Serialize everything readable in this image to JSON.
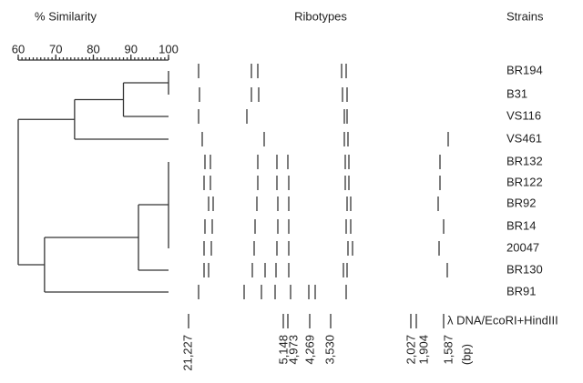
{
  "chart_data": {
    "type": "dendrogram",
    "xlabel": "% Similarity",
    "lanes_label": "Ribotypes",
    "leaves_label": "Strains",
    "xlim": [
      60,
      100
    ],
    "xticks": [
      60,
      70,
      80,
      90,
      100
    ],
    "leaves": [
      "BR194",
      "B31",
      "VS116",
      "VS461",
      "BR132",
      "BR122",
      "BR92",
      "BR14",
      "20047",
      "BR130",
      "BR91"
    ],
    "merges": [
      {
        "leaves": [
          0,
          1
        ],
        "similarity": 100
      },
      {
        "leaves": [
          0,
          1,
          2
        ],
        "similarity": 88
      },
      {
        "leaves": [
          0,
          1,
          2,
          3
        ],
        "similarity": 75
      },
      {
        "leaves": [
          4,
          5,
          6,
          7,
          8
        ],
        "similarity": 100
      },
      {
        "leaves": [
          4,
          5,
          6,
          7,
          8,
          9
        ],
        "similarity": 92
      },
      {
        "leaves": [
          4,
          5,
          6,
          7,
          8,
          9,
          10
        ],
        "similarity": 67
      },
      {
        "leaves": [
          0,
          1,
          2,
          3,
          4,
          5,
          6,
          7,
          8,
          9,
          10
        ],
        "similarity": 60
      }
    ],
    "marker": {
      "name": "λ DNA/EcoRI+HindIII",
      "unit": "(bp)",
      "fragments": [
        {
          "value": 21227,
          "label": "21,227"
        },
        {
          "value": 5148,
          "label": "5,148"
        },
        {
          "value": 4973,
          "label": "4,973"
        },
        {
          "value": 4269,
          "label": "4,269"
        },
        {
          "value": 3530,
          "label": "3,530"
        },
        {
          "value": 2027,
          "label": "2,027"
        },
        {
          "value": 1904,
          "label": "1,904"
        },
        {
          "value": 1587,
          "label": "1,587"
        }
      ]
    }
  }
}
